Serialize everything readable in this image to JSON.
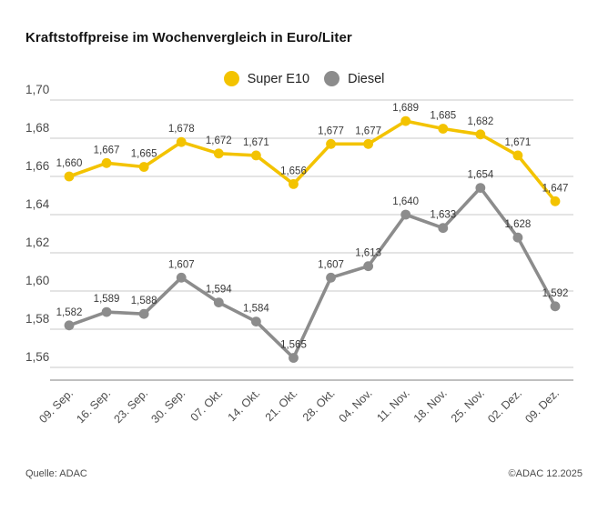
{
  "title": "Kraftstoffpreise im Wochenvergleich in Euro/Liter",
  "legend": {
    "items": [
      {
        "label": "Super E10",
        "color": "#F3C300"
      },
      {
        "label": "Diesel",
        "color": "#8C8C8C"
      }
    ]
  },
  "footer": {
    "source": "Quelle: ADAC",
    "copyright": "©ADAC 12.2025"
  },
  "colors": {
    "grid": "#c9c9c9",
    "axis": "#9b9b9b",
    "tick_label": "#4b4b4b",
    "value_label": "#3a3a3a"
  },
  "chart_data": {
    "type": "line",
    "title": "Kraftstoffpreise im Wochenvergleich in Euro/Liter",
    "xlabel": "",
    "ylabel": "Euro/Liter",
    "categories": [
      "09. Sep.",
      "16. Sep.",
      "23. Sep.",
      "30. Sep.",
      "07. Okt.",
      "14. Okt.",
      "21. Okt.",
      "28. Okt.",
      "04. Nov.",
      "11. Nov.",
      "18. Nov.",
      "25. Nov.",
      "02. Dez.",
      "09. Dez."
    ],
    "series": [
      {
        "name": "Super E10",
        "color": "#F3C300",
        "values": [
          1.66,
          1.667,
          1.665,
          1.678,
          1.672,
          1.671,
          1.656,
          1.677,
          1.677,
          1.689,
          1.685,
          1.682,
          1.671,
          1.647
        ]
      },
      {
        "name": "Diesel",
        "color": "#8C8C8C",
        "values": [
          1.582,
          1.589,
          1.588,
          1.607,
          1.594,
          1.584,
          1.565,
          1.607,
          1.613,
          1.64,
          1.633,
          1.654,
          1.628,
          1.592
        ]
      }
    ],
    "ylim": [
      1.56,
      1.7
    ],
    "ytick_step": 0.02,
    "ytick_labels": [
      "1,70",
      "1,68",
      "1,66",
      "1,64",
      "1,62",
      "1,60",
      "1,58",
      "1,56"
    ],
    "grid": true,
    "legend_position": "top-center",
    "value_labels_visible": true,
    "value_label_format": "german-comma-3-decimals"
  }
}
